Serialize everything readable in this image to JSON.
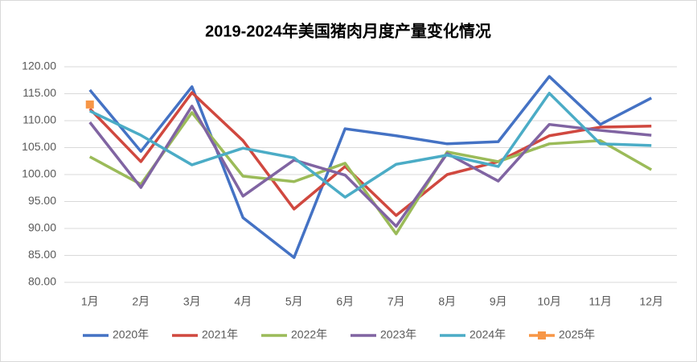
{
  "chart_data": {
    "type": "line",
    "title": "2019-2024年美国猪肉月度产量变化情况",
    "categories": [
      "1月",
      "2月",
      "3月",
      "4月",
      "5月",
      "6月",
      "7月",
      "8月",
      "9月",
      "10月",
      "11月",
      "12月"
    ],
    "series": [
      {
        "name": "2020年",
        "color": "#4472c4",
        "values": [
          115.7,
          104.3,
          116.3,
          92.0,
          84.6,
          108.5,
          107.2,
          105.7,
          106.1,
          118.2,
          109.3,
          114.2
        ]
      },
      {
        "name": "2021年",
        "color": "#d0483f",
        "values": [
          112.2,
          102.4,
          115.2,
          106.3,
          93.6,
          101.5,
          92.4,
          100.0,
          102.4,
          107.2,
          108.8,
          109.0
        ]
      },
      {
        "name": "2022年",
        "color": "#9bbb59",
        "values": [
          103.3,
          98.2,
          111.5,
          99.7,
          98.7,
          102.1,
          89.0,
          104.2,
          102.4,
          105.7,
          106.3,
          100.9
        ]
      },
      {
        "name": "2023年",
        "color": "#8064a2",
        "values": [
          109.7,
          97.6,
          112.7,
          96.0,
          102.7,
          99.9,
          90.4,
          103.9,
          98.8,
          109.3,
          108.2,
          107.3
        ]
      },
      {
        "name": "2024年",
        "color": "#4bacc6",
        "values": [
          111.8,
          107.3,
          101.8,
          104.9,
          103.1,
          95.8,
          101.9,
          103.6,
          101.5,
          115.1,
          105.7,
          105.4
        ]
      },
      {
        "name": "2025年",
        "color": "#f79646",
        "marker": "square",
        "values": [
          113.0,
          null,
          null,
          null,
          null,
          null,
          null,
          null,
          null,
          null,
          null,
          null
        ]
      }
    ],
    "ylim": [
      80,
      120
    ],
    "yticks": [
      {
        "value": 80,
        "label": "80.00"
      },
      {
        "value": 85,
        "label": "85.00"
      },
      {
        "value": 90,
        "label": "90.00"
      },
      {
        "value": 95,
        "label": "95.00"
      },
      {
        "value": 100,
        "label": "100.00"
      },
      {
        "value": 105,
        "label": "105.00"
      },
      {
        "value": 110,
        "label": "110.00"
      },
      {
        "value": 115,
        "label": "115.00"
      },
      {
        "value": 120,
        "label": "120.00"
      }
    ],
    "grid": true,
    "legend": "bottom"
  }
}
